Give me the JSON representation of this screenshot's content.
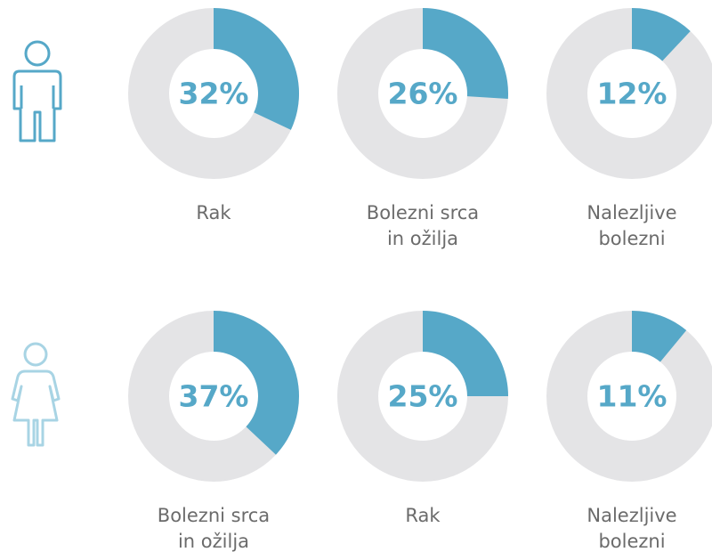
{
  "chart_data": [
    {
      "type": "donut",
      "categories": [
        "Rak"
      ],
      "values": [
        32
      ],
      "value_labels": [
        "32%"
      ],
      "color": "#56a8c8"
    },
    {
      "type": "donut",
      "categories": [
        "Bolezni srca\nin ožilja"
      ],
      "values": [
        26
      ],
      "value_labels": [
        "26%"
      ],
      "color": "#56a8c8"
    },
    {
      "type": "donut",
      "categories": [
        "Nalezljive\nbolezni"
      ],
      "values": [
        12
      ],
      "value_labels": [
        "12%"
      ],
      "color": "#56a8c8"
    },
    {
      "type": "donut",
      "categories": [
        "Bolezni srca\nin ožilja"
      ],
      "values": [
        37
      ],
      "value_labels": [
        "37%"
      ],
      "color": "#56a8c8"
    },
    {
      "type": "donut",
      "categories": [
        "Rak"
      ],
      "values": [
        25
      ],
      "value_labels": [
        "25%"
      ],
      "color": "#56a8c8"
    },
    {
      "type": "donut",
      "categories": [
        "Nalezljive\nbolezni"
      ],
      "values": [
        11
      ],
      "value_labels": [
        "11%"
      ],
      "color": "#56a8c8"
    }
  ]
}
